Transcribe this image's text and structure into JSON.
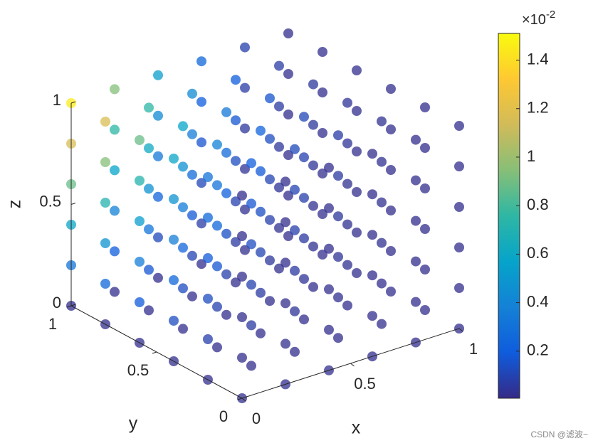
{
  "chart_data": {
    "type": "scatter3",
    "x": [
      0,
      0.2,
      0.4,
      0.6,
      0.8,
      1
    ],
    "y": [
      0,
      0.2,
      0.4,
      0.6,
      0.8,
      1
    ],
    "z": [
      0,
      0.2,
      0.4,
      0.6,
      0.8,
      1
    ],
    "values": [
      [
        [
          0.02,
          0.02,
          0.02,
          0.02,
          0.02,
          0.02
        ],
        [
          0.02,
          0.08,
          0.13,
          0.19,
          0.25,
          0.31
        ],
        [
          0.02,
          0.13,
          0.25,
          0.36,
          0.48,
          0.59
        ],
        [
          0.02,
          0.19,
          0.36,
          0.53,
          0.71,
          0.88
        ],
        [
          0.02,
          0.25,
          0.48,
          0.71,
          0.94,
          1.16
        ],
        [
          0.02,
          0.31,
          0.59,
          0.88,
          1.16,
          1.45
        ]
      ],
      [
        [
          0.02,
          0.02,
          0.02,
          0.02,
          0.02,
          0.02
        ],
        [
          0.02,
          0.06,
          0.09,
          0.13,
          0.17,
          0.2
        ],
        [
          0.02,
          0.09,
          0.17,
          0.24,
          0.31,
          0.39
        ],
        [
          0.02,
          0.13,
          0.24,
          0.35,
          0.46,
          0.57
        ],
        [
          0.02,
          0.17,
          0.31,
          0.46,
          0.61,
          0.75
        ],
        [
          0.02,
          0.2,
          0.39,
          0.57,
          0.75,
          0.94
        ]
      ],
      [
        [
          0.02,
          0.02,
          0.02,
          0.02,
          0.02,
          0.02
        ],
        [
          0.02,
          0.04,
          0.06,
          0.08,
          0.1,
          0.12
        ],
        [
          0.02,
          0.06,
          0.1,
          0.14,
          0.18,
          0.23
        ],
        [
          0.02,
          0.08,
          0.14,
          0.21,
          0.27,
          0.33
        ],
        [
          0.02,
          0.1,
          0.18,
          0.27,
          0.35,
          0.43
        ],
        [
          0.02,
          0.12,
          0.23,
          0.33,
          0.43,
          0.54
        ]
      ],
      [
        [
          0.02,
          0.02,
          0.02,
          0.02,
          0.02,
          0.02
        ],
        [
          0.02,
          0.03,
          0.04,
          0.05,
          0.06,
          0.07
        ],
        [
          0.02,
          0.04,
          0.06,
          0.08,
          0.09,
          0.11
        ],
        [
          0.02,
          0.05,
          0.08,
          0.1,
          0.13,
          0.16
        ],
        [
          0.02,
          0.06,
          0.09,
          0.13,
          0.17,
          0.2
        ],
        [
          0.02,
          0.07,
          0.11,
          0.16,
          0.2,
          0.25
        ]
      ],
      [
        [
          0.02,
          0.02,
          0.02,
          0.02,
          0.02,
          0.02
        ],
        [
          0.02,
          0.02,
          0.03,
          0.03,
          0.03,
          0.03
        ],
        [
          0.02,
          0.03,
          0.03,
          0.03,
          0.04,
          0.04
        ],
        [
          0.02,
          0.03,
          0.03,
          0.04,
          0.05,
          0.05
        ],
        [
          0.02,
          0.03,
          0.04,
          0.05,
          0.06,
          0.07
        ],
        [
          0.02,
          0.03,
          0.04,
          0.05,
          0.07,
          0.08
        ]
      ],
      [
        [
          0.02,
          0.02,
          0.02,
          0.02,
          0.02,
          0.02
        ],
        [
          0.02,
          0.02,
          0.02,
          0.02,
          0.02,
          0.02
        ],
        [
          0.02,
          0.02,
          0.02,
          0.02,
          0.02,
          0.02
        ],
        [
          0.02,
          0.02,
          0.02,
          0.02,
          0.02,
          0.02
        ],
        [
          0.02,
          0.02,
          0.02,
          0.02,
          0.02,
          0.02
        ],
        [
          0.02,
          0.02,
          0.02,
          0.02,
          0.02,
          0.02
        ]
      ]
    ],
    "xlabel": "x",
    "ylabel": "y",
    "zlabel": "z",
    "xlim": [
      0,
      1
    ],
    "ylim": [
      0,
      1
    ],
    "zlim": [
      0,
      1
    ],
    "xticks": [
      0,
      0.5,
      1
    ],
    "yticks": [
      0,
      0.5,
      1
    ],
    "zticks": [
      0,
      0.5,
      1
    ],
    "clim": [
      0.006,
      1.51
    ],
    "cticks": [
      0.2,
      0.4,
      0.6,
      0.8,
      1,
      1.2,
      1.4
    ],
    "colorbar_multiplier": {
      "base": "×10",
      "exponent": "-2"
    },
    "colormap": [
      "#352a87",
      "#0f5cdd",
      "#1481d6",
      "#06a4ca",
      "#2eb7a4",
      "#87bf77",
      "#d1bb59",
      "#fec832",
      "#f9fb0e"
    ],
    "watermark": "CSDN @滤波~"
  }
}
